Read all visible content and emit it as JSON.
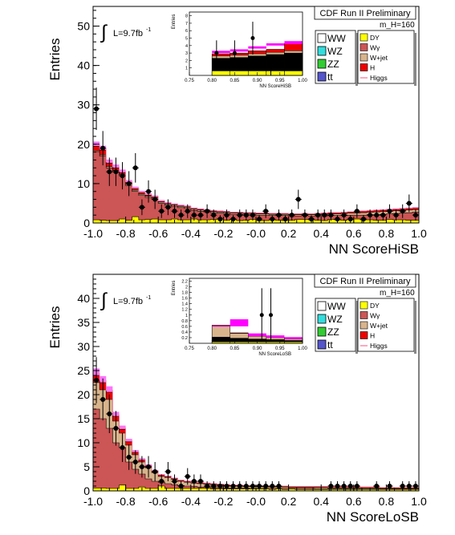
{
  "chart_data": [
    {
      "type": "bar",
      "subtype": "stacked-histogram-with-data-points",
      "title": "CDF Run II Preliminary",
      "mass_label": "m_H=160",
      "lumi_label": "L=9.7fb",
      "lumi_exp": "-1",
      "xlabel": "NN ScoreHiSB",
      "ylabel": "Entries",
      "xlim": [
        -1.0,
        1.0
      ],
      "ylim": [
        0,
        55
      ],
      "xticks": [
        -1.0,
        -0.8,
        -0.6,
        -0.4,
        -0.2,
        0.0,
        0.2,
        0.4,
        0.6,
        0.8,
        1.0
      ],
      "xtick_labels": [
        "-1.0",
        "-0.8",
        "-0.6",
        "-0.4",
        "-0.2",
        "-0.0",
        "0.2",
        "0.4",
        "0.6",
        "0.8",
        "1.0"
      ],
      "yticks": [
        0,
        10,
        20,
        30,
        40,
        50
      ],
      "bin_edges_start": -1.0,
      "bin_width": 0.04,
      "stack": {
        "yellow": [
          0.8,
          0.7,
          0.6,
          0.6,
          1.0,
          0.7,
          1.6,
          0.8,
          0.9,
          1.0,
          0.8,
          0.8,
          1.0,
          0.8,
          0.8,
          1.0,
          0.8,
          0.8,
          0.9,
          1.0,
          0.7,
          0.9,
          0.6,
          0.7,
          0.9,
          0.6,
          0.6,
          0.8,
          0.7,
          0.6,
          0.7,
          0.9,
          0.9,
          0.8,
          0.7,
          0.6,
          0.9,
          0.8,
          0.7,
          0.9,
          1.0,
          0.8,
          0.8,
          0.7,
          0.7,
          0.9,
          0.8,
          0.8,
          0.7,
          0.7
        ],
        "red_total": [
          18,
          17,
          14,
          13,
          12,
          9.5,
          8,
          7,
          6.5,
          6,
          5,
          4.5,
          4.2,
          3.9,
          3.7,
          3.2,
          3.0,
          2.8,
          2.6,
          2.5,
          2.4,
          2.2,
          2.2,
          2.1,
          2.1,
          2.0,
          2.0,
          1.9,
          1.9,
          1.9,
          1.8,
          1.8,
          1.9,
          1.8,
          1.8,
          1.8,
          1.9,
          1.9,
          1.9,
          2.0,
          2.0,
          2.0,
          2.1,
          2.1,
          2.2,
          2.3,
          2.4,
          2.5,
          2.6,
          2.8
        ],
        "tan_total": [
          18.3,
          17.3,
          14.3,
          13.3,
          12.3,
          9.8,
          8.3,
          7.3,
          6.8,
          6.3,
          5.3,
          4.8,
          4.5,
          4.2,
          4.0,
          3.5,
          3.3,
          3.1,
          2.9,
          2.8,
          2.7,
          2.5,
          2.5,
          2.4,
          2.4,
          2.3,
          2.3,
          2.2,
          2.2,
          2.2,
          2.1,
          2.1,
          2.2,
          2.1,
          2.2,
          2.2,
          2.3,
          2.3,
          2.4,
          2.5,
          2.5,
          2.6,
          2.7,
          2.8,
          2.9,
          3.0,
          3.1,
          3.2,
          3.3,
          3.4
        ],
        "higgs_total": [
          19.5,
          18.5,
          15.2,
          14.0,
          12.8,
          10.3,
          8.7,
          7.7,
          7.1,
          6.6,
          5.5,
          5.0,
          4.7,
          4.4,
          4.2,
          3.7,
          3.5,
          3.3,
          3.1,
          3.0,
          2.9,
          2.7,
          2.7,
          2.6,
          2.6,
          2.5,
          2.5,
          2.4,
          2.4,
          2.4,
          2.3,
          2.3,
          2.4,
          2.3,
          2.4,
          2.5,
          2.6,
          2.6,
          2.7,
          2.8,
          2.9,
          3.0,
          3.1,
          3.2,
          3.3,
          3.4,
          3.5,
          3.6,
          3.7,
          3.8
        ]
      },
      "data_points": {
        "x": [
          -0.98,
          -0.94,
          -0.9,
          -0.86,
          -0.82,
          -0.78,
          -0.74,
          -0.7,
          -0.66,
          -0.62,
          -0.58,
          -0.54,
          -0.5,
          -0.46,
          -0.42,
          -0.38,
          -0.34,
          -0.3,
          -0.26,
          -0.22,
          -0.18,
          -0.14,
          -0.1,
          -0.06,
          -0.02,
          0.02,
          0.06,
          0.1,
          0.14,
          0.18,
          0.22,
          0.26,
          0.3,
          0.34,
          0.38,
          0.42,
          0.46,
          0.5,
          0.54,
          0.58,
          0.62,
          0.66,
          0.7,
          0.74,
          0.78,
          0.82,
          0.86,
          0.9,
          0.94,
          0.98
        ],
        "y": [
          29,
          19,
          13,
          13,
          12,
          10,
          14,
          4,
          8,
          6,
          3,
          4,
          3,
          2,
          3,
          2,
          2,
          3,
          2,
          1,
          2,
          1,
          2,
          2,
          2,
          1,
          3,
          1,
          2,
          1,
          2,
          6,
          2,
          1,
          2,
          2,
          2,
          1,
          2,
          1,
          3,
          1,
          2,
          2,
          2,
          3,
          2,
          3,
          5,
          2
        ]
      },
      "legend_left": [
        "WW",
        "WZ",
        "ZZ",
        "tt"
      ],
      "legend_right": [
        "DY",
        "Wγ",
        "W+jet",
        "H",
        "Higgs"
      ],
      "colors": {
        "WW": "#ffffff",
        "WZ": "#33dddd",
        "ZZ": "#33cc33",
        "tt": "#5555cc",
        "DY": "#ffff00",
        "Wg": "#cc5555",
        "Wjet": "#d8b48c",
        "H": "#ee0000",
        "Higgs": "#ff88aa",
        "uncert": "#ff00ff"
      },
      "inset": {
        "xlabel": "NN ScoreHiSB",
        "ylabel": "Entries",
        "xlim": [
          0.75,
          1.0
        ],
        "ylim": [
          0,
          8.5
        ],
        "xticks": [
          0.75,
          0.8,
          0.85,
          0.9,
          0.95,
          1.0
        ],
        "xtick_labels": [
          "0.75",
          "0.80",
          "0.85",
          "0.90",
          "0.95",
          "1.00"
        ],
        "yticks": [
          1,
          2,
          3,
          4,
          5,
          6,
          7,
          8
        ],
        "bin_edges": [
          0.75,
          0.8,
          0.84,
          0.88,
          0.92,
          0.96,
          1.0
        ],
        "bins_yellow": [
          0,
          0.6,
          0.6,
          0.6,
          0.6,
          0.6
        ],
        "bins_red": [
          0,
          2.3,
          2.4,
          2.6,
          2.8,
          3.0
        ],
        "bins_tan": [
          0,
          2.6,
          2.7,
          2.9,
          3.1,
          3.3
        ],
        "bins_Hred": [
          0,
          2.9,
          3.0,
          3.3,
          3.5,
          4.3
        ],
        "bins_magenta_lo": [
          0,
          3.0,
          3.2,
          3.6,
          4.0,
          4.2
        ],
        "bins_magenta_hi": [
          0,
          3.3,
          3.5,
          3.9,
          4.3,
          4.6
        ],
        "points_x": [
          0.81,
          0.85,
          0.89,
          0.93
        ],
        "points_y": [
          3.0,
          3.0,
          5.0,
          1.0
        ],
        "points_err": [
          1.7,
          1.7,
          2.2,
          1.0
        ]
      }
    },
    {
      "type": "bar",
      "subtype": "stacked-histogram-with-data-points",
      "title": "CDF Run II Preliminary",
      "mass_label": "m_H=160",
      "lumi_label": "L=9.7fb",
      "lumi_exp": "-1",
      "xlabel": "NN ScoreLoSB",
      "ylabel": "Entries",
      "xlim": [
        -1.0,
        1.0
      ],
      "ylim": [
        0,
        45
      ],
      "xticks": [
        -1.0,
        -0.8,
        -0.6,
        -0.4,
        -0.2,
        0.0,
        0.2,
        0.4,
        0.6,
        0.8,
        1.0
      ],
      "xtick_labels": [
        "-1.0",
        "-0.8",
        "-0.6",
        "-0.4",
        "-0.2",
        "-0.0",
        "0.2",
        "0.4",
        "0.6",
        "0.8",
        "1.0"
      ],
      "yticks": [
        0,
        5,
        10,
        15,
        20,
        25,
        30,
        35,
        40
      ],
      "bin_edges_start": -1.0,
      "bin_width": 0.04,
      "stack": {
        "yellow": [
          0.6,
          0.6,
          0.5,
          0.5,
          1.2,
          0.5,
          0.5,
          0.8,
          0.5,
          0.5,
          1.0,
          0.5,
          0.5,
          0.5,
          0.5,
          0.5,
          0.5,
          0.5,
          0.4,
          0.4,
          0.4,
          0.4,
          0.4,
          0.4,
          0.4,
          0.4,
          0.4,
          0.3,
          0.4,
          0.3,
          0.4,
          0.3,
          0.3,
          0.3,
          0.3,
          0.3,
          0.3,
          0.3,
          0.3,
          0.3,
          0.3,
          0.3,
          0.3,
          0.3,
          0.3,
          0.3,
          0.3,
          0.3,
          0.3,
          0.3
        ],
        "red_total": [
          17,
          15,
          13,
          10,
          9,
          6,
          4.5,
          3.5,
          2.5,
          2,
          1.8,
          1.5,
          1.3,
          1.1,
          1.0,
          0.9,
          0.8,
          0.8,
          0.7,
          0.7,
          0.6,
          0.6,
          0.6,
          0.6,
          0.5,
          0.5,
          0.5,
          0.5,
          0.5,
          0.5,
          0.5,
          0.5,
          0.5,
          0.5,
          0.4,
          0.4,
          0.4,
          0.4,
          0.4,
          0.4,
          0.4,
          0.4,
          0.4,
          0.4,
          0.4,
          0.4,
          0.4,
          0.4,
          0.4,
          0.4
        ],
        "tan_total": [
          22.5,
          21,
          19,
          14.5,
          12,
          9.5,
          7.5,
          6,
          4.8,
          3.8,
          3.0,
          2.8,
          2.4,
          2.0,
          1.8,
          1.6,
          1.5,
          1.4,
          1.3,
          1.2,
          1.1,
          1.0,
          1.0,
          0.9,
          0.9,
          0.9,
          0.8,
          0.8,
          0.8,
          0.8,
          0.7,
          0.7,
          0.7,
          0.7,
          0.7,
          0.7,
          0.6,
          0.6,
          0.6,
          0.6,
          0.6,
          0.6,
          0.6,
          0.6,
          0.5,
          0.5,
          0.5,
          0.5,
          0.5,
          0.5
        ],
        "higgs_total": [
          24,
          22.5,
          20.5,
          15.5,
          12.8,
          10.2,
          8.0,
          6.4,
          5.2,
          4.1,
          3.3,
          3.0,
          2.6,
          2.2,
          2.0,
          1.8,
          1.7,
          1.6,
          1.5,
          1.4,
          1.3,
          1.2,
          1.2,
          1.1,
          1.1,
          1.1,
          1.0,
          1.0,
          1.0,
          1.0,
          0.9,
          0.9,
          0.9,
          0.9,
          0.9,
          0.9,
          0.8,
          0.8,
          0.8,
          0.8,
          0.8,
          0.8,
          0.8,
          0.8,
          0.7,
          0.7,
          0.7,
          0.7,
          0.7,
          0.7
        ]
      },
      "data_points": {
        "x": [
          -0.98,
          -0.94,
          -0.9,
          -0.86,
          -0.82,
          -0.78,
          -0.74,
          -0.7,
          -0.66,
          -0.62,
          -0.58,
          -0.54,
          -0.5,
          -0.46,
          -0.42,
          -0.38,
          -0.34,
          -0.3,
          -0.26,
          -0.22,
          -0.18,
          -0.14,
          -0.1,
          -0.06,
          -0.02,
          0.02,
          0.06,
          0.1,
          0.14,
          0.18,
          0.22,
          0.26,
          0.3,
          0.34,
          0.38,
          0.42,
          0.46,
          0.5,
          0.54,
          0.58,
          0.62,
          0.66,
          0.7,
          0.74,
          0.78,
          0.82,
          0.86,
          0.9,
          0.94,
          0.98
        ],
        "y": [
          23,
          19,
          16,
          13,
          9,
          7,
          6,
          5,
          5,
          4,
          2,
          4,
          2,
          1,
          3,
          2,
          2,
          1,
          1,
          1,
          1,
          1,
          1,
          1,
          1,
          1,
          1,
          1,
          1,
          0,
          0,
          0,
          0,
          0,
          0,
          0,
          1,
          1,
          1,
          1,
          1,
          0,
          0,
          1,
          0,
          1,
          0,
          1,
          1,
          1
        ]
      },
      "legend_left": [
        "WW",
        "WZ",
        "ZZ",
        "tt"
      ],
      "legend_right": [
        "DY",
        "Wγ",
        "W+jet",
        "H",
        "Higgs"
      ],
      "colors": {
        "WW": "#ffffff",
        "WZ": "#33dddd",
        "ZZ": "#33cc33",
        "tt": "#5555cc",
        "DY": "#ffff00",
        "Wg": "#cc5555",
        "Wjet": "#d8b48c",
        "H": "#ee0000",
        "Higgs": "#ff88aa",
        "uncert": "#ff00ff"
      },
      "inset": {
        "xlabel": "NN ScoreLoSB",
        "ylabel": "Entries",
        "xlim": [
          0.75,
          1.0
        ],
        "ylim": [
          0,
          2.3
        ],
        "xticks": [
          0.75,
          0.8,
          0.85,
          0.9,
          0.95,
          1.0
        ],
        "xtick_labels": [
          "0.75",
          "0.80",
          "0.85",
          "0.90",
          "0.95",
          "1.00"
        ],
        "yticks": [
          0.2,
          0.4,
          0.6,
          0.8,
          1.0,
          1.2,
          1.4,
          1.6,
          1.8,
          2.0,
          2.2
        ],
        "bin_edges": [
          0.75,
          0.8,
          0.84,
          0.88,
          0.92,
          0.96,
          1.0
        ],
        "bins_yellow": [
          0,
          0.05,
          0.05,
          0.05,
          0.05,
          0.05
        ],
        "bins_red": [
          0,
          0.22,
          0.18,
          0.15,
          0.13,
          0.1
        ],
        "bins_tan": [
          0,
          0.62,
          0.35,
          0.25,
          0.2,
          0.15
        ],
        "bins_Hred": [
          0,
          0.64,
          0.37,
          0.27,
          0.22,
          0.17
        ],
        "bins_magenta_lo": [
          0,
          0.62,
          0.6,
          0.25,
          0.2,
          0.15
        ],
        "bins_magenta_hi": [
          0,
          0.62,
          0.85,
          0.35,
          0.28,
          0.22
        ],
        "points_x": [
          0.91,
          0.93
        ],
        "points_y": [
          1.0,
          1.0
        ],
        "points_err": [
          0.95,
          0.95
        ]
      }
    }
  ]
}
